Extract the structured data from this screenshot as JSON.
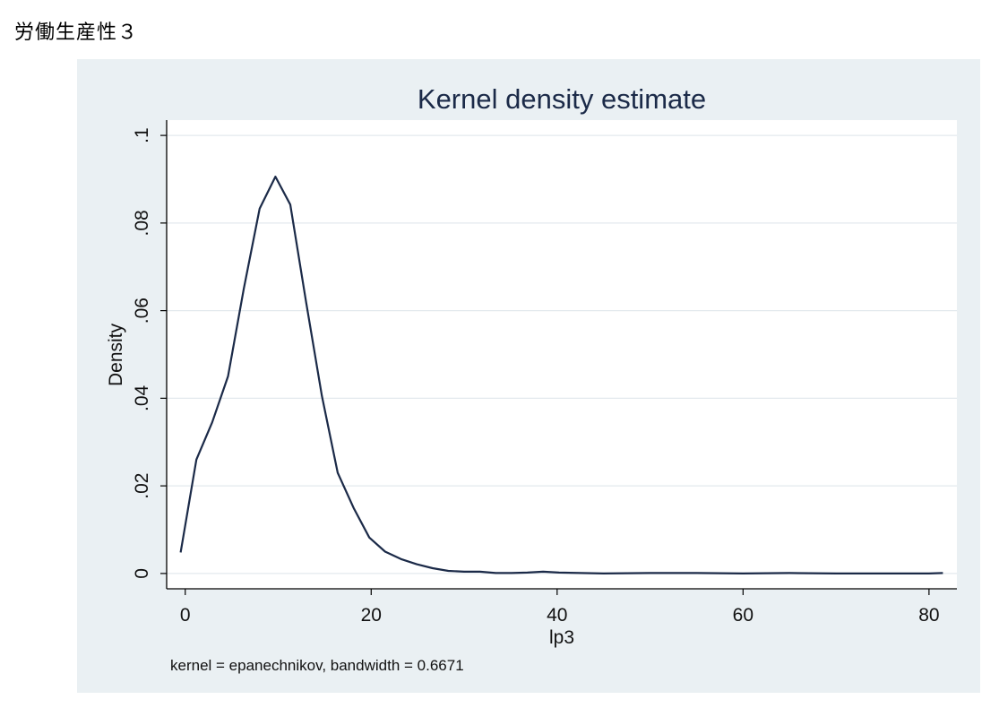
{
  "page": {
    "heading": "労働生産性３"
  },
  "chart_data": {
    "type": "line",
    "title": "Kernel density estimate",
    "xlabel": "lp3",
    "ylabel": "Density",
    "note": "kernel = epanechnikov, bandwidth = 0.6671",
    "xlim": [
      -2,
      83
    ],
    "ylim": [
      -0.0035,
      0.1035
    ],
    "x_ticks": [
      0,
      20,
      40,
      60,
      80
    ],
    "x_tick_labels": [
      "0",
      "20",
      "40",
      "60",
      "80"
    ],
    "y_ticks": [
      0,
      0.02,
      0.04,
      0.06,
      0.08,
      0.1
    ],
    "y_tick_labels": [
      "0",
      ".02",
      ".04",
      ".06",
      ".08",
      ".1"
    ],
    "grid": true,
    "series": [
      {
        "color": "#1b2a48",
        "x": [
          -0.5,
          1.2,
          2.9,
          4.6,
          6.3,
          8.0,
          9.7,
          11.3,
          13.0,
          14.7,
          16.4,
          18.1,
          19.8,
          21.5,
          23.2,
          24.9,
          26.6,
          28.3,
          30.0,
          31.7,
          33.4,
          35.1,
          36.8,
          38.5,
          40.2,
          45.0,
          50.0,
          55.0,
          60.0,
          65.0,
          70.0,
          75.0,
          80.0,
          81.5
        ],
        "y": [
          0.0048,
          0.026,
          0.0345,
          0.045,
          0.065,
          0.0833,
          0.0906,
          0.0842,
          0.062,
          0.0405,
          0.023,
          0.015,
          0.0082,
          0.005,
          0.0033,
          0.0021,
          0.0012,
          0.0006,
          0.0004,
          0.0004,
          0.0001,
          0.0001,
          0.0002,
          0.0004,
          0.0002,
          0.0,
          0.0001,
          0.0001,
          0.0,
          0.0001,
          0.0,
          0.0,
          0.0,
          0.0001
        ]
      }
    ]
  }
}
